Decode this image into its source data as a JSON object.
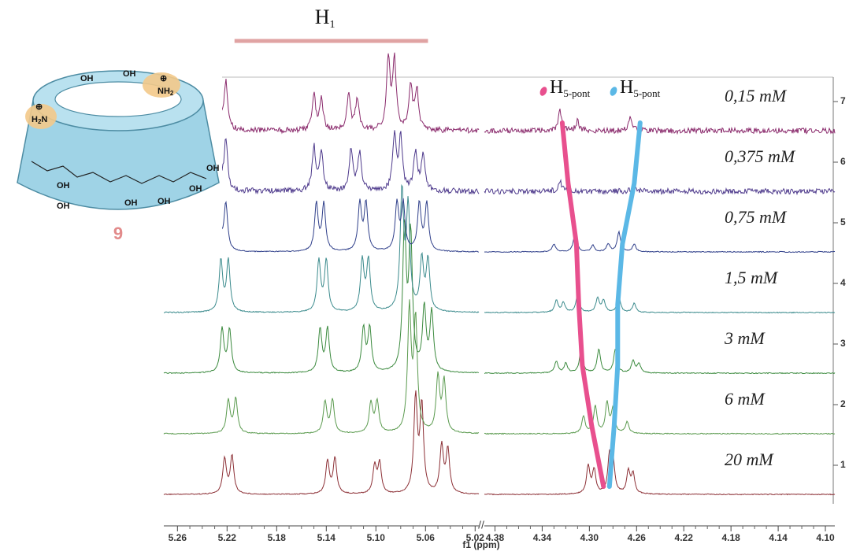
{
  "chart_data": {
    "type": "stacked-spectrum",
    "xlabel": "f1 (ppm)",
    "segments": [
      {
        "xlim": [
          5.271,
          5.017
        ],
        "xticks": [
          5.26,
          5.22,
          5.18,
          5.14,
          {
            "value": 5.1,
            "label": "5.10"
          },
          5.06,
          5.02
        ]
      },
      {
        "xlim": [
          4.389,
          4.092
        ],
        "xticks": [
          4.38,
          4.34,
          {
            "value": 4.3,
            "label": "4.30"
          },
          4.26,
          4.22,
          4.18,
          4.14,
          {
            "value": 4.1,
            "label": "4.10"
          }
        ]
      }
    ],
    "annotation": {
      "text": "H",
      "sub": "1",
      "range": [
        5.214,
        5.058
      ],
      "color": "#e0a3a3"
    },
    "traces": [
      {
        "label": "20 mM",
        "number": 1,
        "color": "#8c2f35",
        "peak_ppm": [
          5.222,
          5.216,
          5.139,
          5.133,
          5.101,
          5.097,
          5.068,
          5.063,
          5.047,
          5.042,
          4.301,
          4.296,
          4.283,
          4.28,
          4.267,
          4.263
        ],
        "peak_height": [
          45,
          48,
          42,
          45,
          35,
          38,
          120,
          110,
          60,
          55,
          35,
          30,
          45,
          40,
          28,
          25
        ]
      },
      {
        "label": "6 mM",
        "number": 2,
        "color": "#5a9a4e",
        "peak_ppm": [
          5.219,
          5.213,
          5.141,
          5.135,
          5.104,
          5.099,
          5.073,
          5.068,
          5.05,
          5.045,
          4.305,
          4.295,
          4.285,
          4.28,
          4.268
        ],
        "peak_height": [
          42,
          44,
          40,
          42,
          38,
          40,
          155,
          140,
          70,
          65,
          22,
          35,
          38,
          30,
          15
        ]
      },
      {
        "label": "3 mM",
        "number": 3,
        "color": "#3b8a3e",
        "peak_ppm": [
          5.224,
          5.218,
          5.145,
          5.139,
          5.11,
          5.105,
          5.077,
          5.072,
          5.061,
          5.055,
          4.328,
          4.32,
          4.307,
          4.292,
          4.278,
          4.263,
          4.258
        ],
        "peak_height": [
          55,
          55,
          55,
          55,
          55,
          55,
          180,
          170,
          80,
          75,
          15,
          12,
          30,
          30,
          30,
          15,
          12
        ]
      },
      {
        "label": "1,5 mM",
        "number": 4,
        "color": "#3a8a8c",
        "peak_ppm": [
          5.225,
          5.219,
          5.146,
          5.14,
          5.111,
          5.106,
          5.079,
          5.074,
          5.063,
          5.058,
          4.328,
          4.322,
          4.31,
          4.293,
          4.288,
          4.275,
          4.262
        ],
        "peak_height": [
          65,
          65,
          65,
          65,
          65,
          65,
          150,
          130,
          65,
          65,
          15,
          12,
          22,
          18,
          15,
          20,
          12
        ]
      },
      {
        "label": "0,75 mM",
        "number": 5,
        "color": "#2f3f8a",
        "peak_ppm": [
          5.227,
          5.221,
          5.148,
          5.142,
          5.113,
          5.108,
          5.083,
          5.078,
          5.065,
          5.059,
          4.33,
          4.312,
          4.297,
          4.284,
          4.275,
          4.262
        ],
        "peak_height": [
          60,
          60,
          60,
          60,
          60,
          60,
          60,
          60,
          60,
          60,
          10,
          25,
          8,
          10,
          25,
          10
        ]
      },
      {
        "label": "0,375 mM",
        "number": 6,
        "color": "#4e3a8c",
        "peak_ppm": [
          5.227,
          5.221,
          5.15,
          5.144,
          5.12,
          5.113,
          5.085,
          5.08,
          5.068,
          5.062,
          4.325,
          4.262
        ],
        "peak_height": [
          60,
          62,
          55,
          52,
          52,
          50,
          70,
          65,
          50,
          45,
          15,
          12
        ]
      },
      {
        "label": "0,15 mM",
        "number": 7,
        "color": "#8a2a6c",
        "peak_ppm": [
          5.227,
          5.221,
          5.15,
          5.144,
          5.122,
          5.115,
          5.09,
          5.085,
          5.072,
          5.067,
          4.325,
          4.31,
          4.265
        ],
        "peak_height": [
          55,
          60,
          45,
          40,
          45,
          40,
          90,
          85,
          55,
          50,
          25,
          12,
          18
        ]
      }
    ],
    "series": [
      {
        "name": "H",
        "name_sub": "5-pont",
        "color": "#e8508e",
        "ppm": [
          4.288,
          4.298,
          4.306,
          4.309,
          4.311,
          4.318,
          4.323
        ]
      },
      {
        "name": "H",
        "name_sub": "5-pont",
        "color": "#5bb8e6",
        "ppm": [
          4.283,
          4.279,
          4.276,
          4.276,
          4.272,
          4.262,
          4.257
        ]
      }
    ]
  },
  "molecule": {
    "number": "9",
    "labels": [
      {
        "parts": [
          "OH"
        ]
      },
      {
        "parts": [
          "OH"
        ]
      },
      {
        "parts": [
          "NH",
          "2"
        ]
      },
      {
        "parts": [
          "⊕"
        ]
      },
      {
        "parts": [
          "H",
          "2",
          "N"
        ]
      },
      {
        "parts": [
          "⊕"
        ]
      },
      {
        "parts": [
          "OH"
        ]
      },
      {
        "parts": [
          "OH"
        ]
      },
      {
        "parts": [
          "OH"
        ]
      },
      {
        "parts": [
          "OH"
        ]
      },
      {
        "parts": [
          "OH"
        ]
      },
      {
        "parts": [
          "OH"
        ]
      }
    ]
  }
}
